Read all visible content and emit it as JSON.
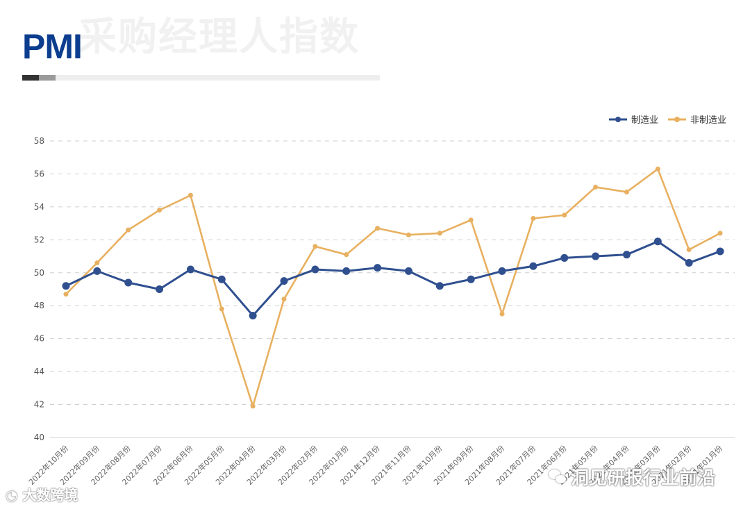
{
  "header": {
    "title": "PMI",
    "background_title": "采购经理人指数"
  },
  "watermarks": {
    "left": "大数跨境",
    "right": "洞见研报行业前沿"
  },
  "icons": {
    "left_watermark": "wechat-bubble-icon",
    "right_watermark": "wechat-icon"
  },
  "chart_data": {
    "type": "line",
    "categories": [
      "2022年10月份",
      "2022年09月份",
      "2022年08月份",
      "2022年07月份",
      "2022年06月份",
      "2022年05月份",
      "2022年04月份",
      "2022年03月份",
      "2022年02月份",
      "2022年01月份",
      "2021年12月份",
      "2021年11月份",
      "2021年10月份",
      "2021年09月份",
      "2021年08月份",
      "2021年07月份",
      "2021年06月份",
      "2021年05月份",
      "2021年04月份",
      "2021年03月份",
      "2021年02月份",
      "2021年01月份"
    ],
    "series": [
      {
        "name": "制造业",
        "color": "#2f4f8f",
        "values": [
          49.2,
          50.1,
          49.4,
          49.0,
          50.2,
          49.6,
          47.4,
          49.5,
          50.2,
          50.1,
          50.3,
          50.1,
          49.2,
          49.6,
          50.1,
          50.4,
          50.9,
          51.0,
          51.1,
          51.9,
          50.6,
          51.3
        ]
      },
      {
        "name": "非制造业",
        "color": "#e8b060",
        "values": [
          48.7,
          50.6,
          52.6,
          53.8,
          54.7,
          47.8,
          41.9,
          48.4,
          51.6,
          51.1,
          52.7,
          52.3,
          52.4,
          53.2,
          47.5,
          53.3,
          53.5,
          55.2,
          54.9,
          56.3,
          51.4,
          52.4
        ]
      }
    ],
    "ylim": [
      40,
      58
    ],
    "yticks": [
      40,
      42,
      44,
      46,
      48,
      50,
      52,
      54,
      56,
      58
    ],
    "grid": true,
    "legend": "top-right",
    "title": "",
    "xlabel": "",
    "ylabel": ""
  }
}
